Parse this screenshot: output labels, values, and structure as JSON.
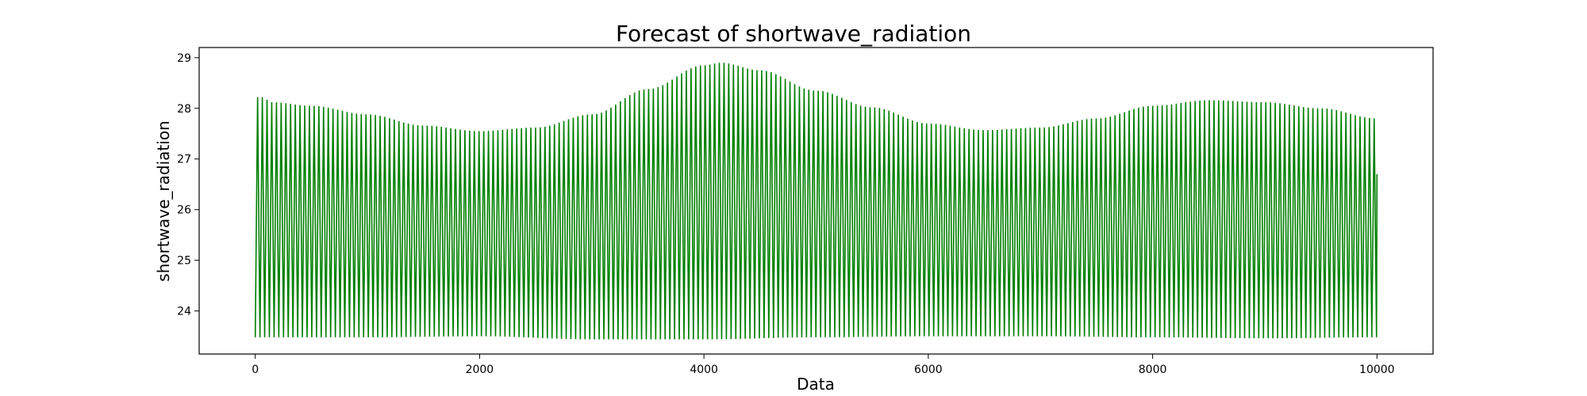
{
  "chart_data": {
    "type": "line",
    "title": "Forecast of shortwave_radiation",
    "xlabel": "Data",
    "ylabel": "shortwave_radiation",
    "xlim": [
      -500,
      10500
    ],
    "ylim": [
      23.15,
      29.2
    ],
    "x_ticks": [
      0,
      2000,
      4000,
      6000,
      8000,
      10000
    ],
    "y_ticks": [
      24,
      25,
      26,
      27,
      28,
      29
    ],
    "grid": false,
    "legend": "none",
    "series": [
      {
        "color": "#008000",
        "oscillation_period": 42,
        "x_range": [
          0,
          10000
        ],
        "lower_envelope": {
          "x": [
            0,
            1000,
            2000,
            3000,
            4000,
            5000,
            6000,
            7000,
            8000,
            9000,
            10000
          ],
          "y": [
            23.48,
            23.48,
            23.5,
            23.44,
            23.44,
            23.48,
            23.5,
            23.5,
            23.48,
            23.46,
            23.48
          ]
        },
        "upper_envelope": {
          "x": [
            0,
            20,
            60,
            150,
            500,
            1000,
            1500,
            2000,
            2500,
            3000,
            3500,
            4000,
            4150,
            4500,
            5000,
            5500,
            6000,
            6500,
            7000,
            7500,
            8000,
            8500,
            9000,
            9500,
            10000
          ],
          "y": [
            23.5,
            28.22,
            28.22,
            28.12,
            28.05,
            27.88,
            27.66,
            27.55,
            27.62,
            27.88,
            28.38,
            28.85,
            28.9,
            28.75,
            28.35,
            28.02,
            27.7,
            27.57,
            27.62,
            27.8,
            28.05,
            28.16,
            28.12,
            28.0,
            27.8
          ]
        }
      }
    ]
  }
}
